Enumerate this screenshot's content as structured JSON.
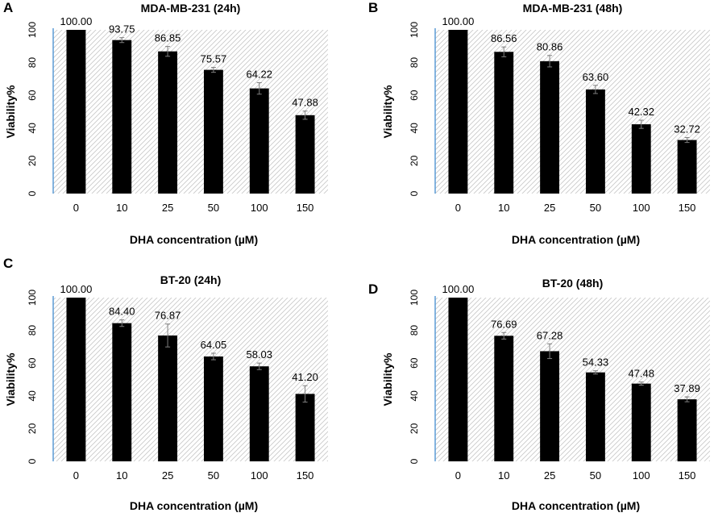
{
  "figure": {
    "colors": {
      "bar": "#000000",
      "axis": "#5b9bd5",
      "hatch": "#c8c8c8",
      "error": "#7f7f7f",
      "text": "#000000"
    }
  },
  "chart_data": [
    {
      "panel": "A",
      "type": "bar",
      "title": "MDA-MB-231  (24h)",
      "xlabel": "DHA concentration (µM)",
      "ylabel": "Viability%",
      "ylim": [
        0,
        100
      ],
      "yticks": [
        0,
        20,
        40,
        60,
        80,
        100
      ],
      "categories": [
        "0",
        "10",
        "25",
        "50",
        "100",
        "150"
      ],
      "values": [
        100.0,
        93.75,
        86.85,
        75.57,
        64.22,
        47.88
      ],
      "value_labels": [
        "100.00",
        "93.75",
        "86.85",
        "75.57",
        "64.22",
        "47.88"
      ],
      "errors": [
        0,
        1.5,
        3.0,
        1.5,
        3.5,
        2.5
      ],
      "grid": false
    },
    {
      "panel": "B",
      "type": "bar",
      "title": "MDA-MB-231  (48h)",
      "xlabel": "DHA concentration (µM)",
      "ylabel": "Viability%",
      "ylim": [
        0,
        100
      ],
      "yticks": [
        0,
        20,
        40,
        60,
        80,
        100
      ],
      "categories": [
        "0",
        "10",
        "25",
        "50",
        "100",
        "150"
      ],
      "values": [
        100.0,
        86.56,
        80.86,
        63.6,
        42.32,
        32.72
      ],
      "value_labels": [
        "100.00",
        "86.56",
        "80.86",
        "63.60",
        "42.32",
        "32.72"
      ],
      "errors": [
        0,
        3.0,
        3.5,
        2.5,
        2.5,
        1.5
      ],
      "grid": false
    },
    {
      "panel": "C",
      "type": "bar",
      "title": "BT-20 (24h)",
      "xlabel": "DHA concentration (µM)",
      "ylabel": "Viability%",
      "ylim": [
        0,
        100
      ],
      "yticks": [
        0,
        20,
        40,
        60,
        80,
        100
      ],
      "categories": [
        "0",
        "10",
        "25",
        "50",
        "100",
        "150"
      ],
      "values": [
        100.0,
        84.4,
        76.87,
        64.05,
        58.03,
        41.2
      ],
      "value_labels": [
        "100.00",
        "84.40",
        "76.87",
        "64.05",
        "58.03",
        "41.20"
      ],
      "errors": [
        0,
        2.0,
        7.0,
        2.0,
        2.0,
        5.0
      ],
      "grid": false
    },
    {
      "panel": "D",
      "type": "bar",
      "title": "BT-20 (48h)",
      "xlabel": "DHA concentration (µM)",
      "ylabel": "Viability%",
      "ylim": [
        0,
        100
      ],
      "yticks": [
        0,
        20,
        40,
        60,
        80,
        100
      ],
      "categories": [
        "0",
        "10",
        "25",
        "50",
        "100",
        "150"
      ],
      "values": [
        100.0,
        76.69,
        67.28,
        54.33,
        47.48,
        37.89
      ],
      "value_labels": [
        "100.00",
        "76.69",
        "67.28",
        "54.33",
        "47.48",
        "37.89"
      ],
      "errors": [
        0,
        2.0,
        4.5,
        1.0,
        1.0,
        1.5
      ],
      "grid": false
    }
  ]
}
